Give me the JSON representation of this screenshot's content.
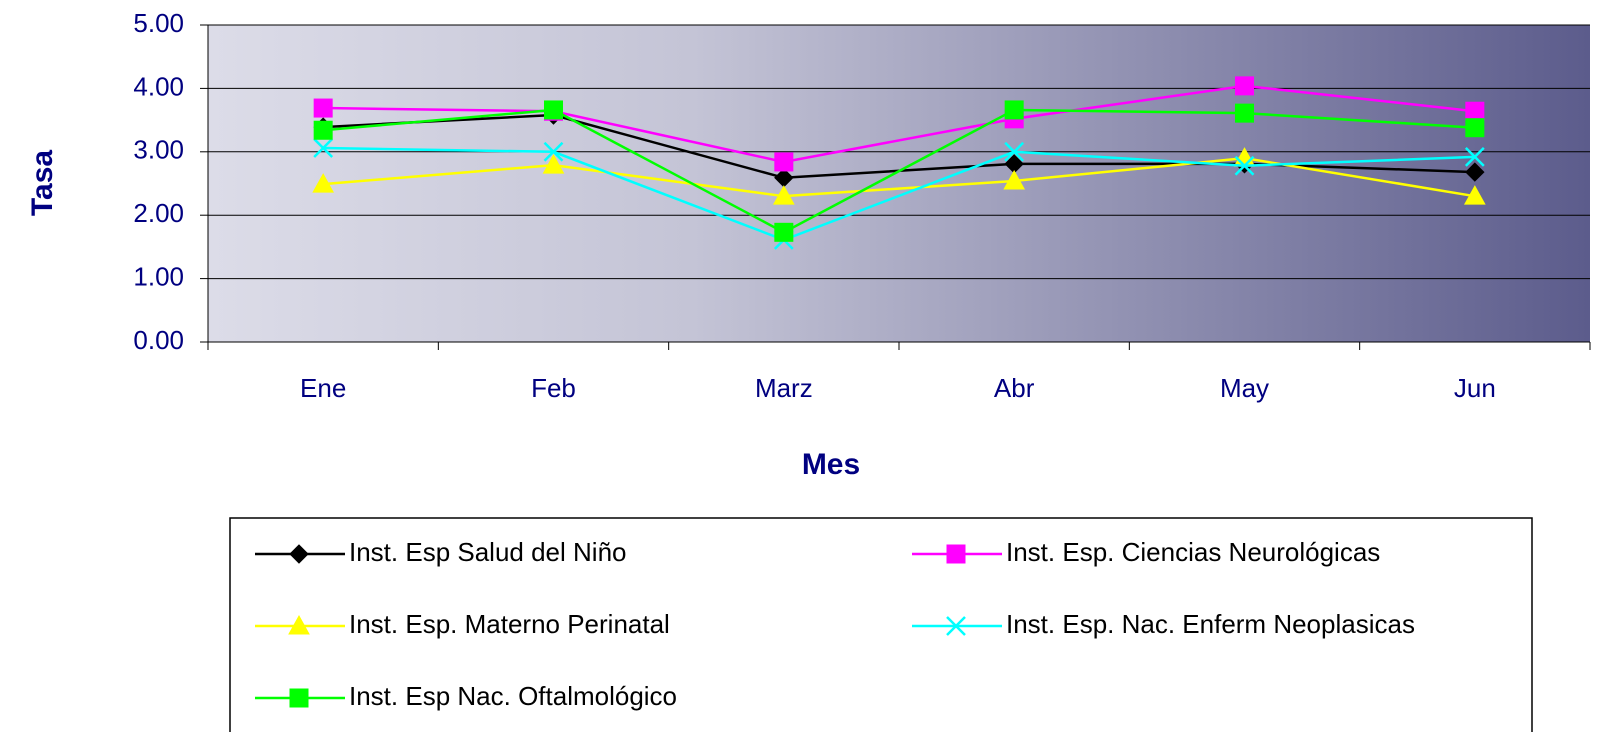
{
  "chart_data": {
    "type": "line",
    "y_label": "Tasa",
    "x_label": "Mes",
    "categories": [
      "Ene",
      "Feb",
      "Marz",
      "Abr",
      "May",
      "Jun"
    ],
    "series": [
      {
        "name": "Inst. Esp Salud del Niño",
        "color": "#000000",
        "marker": "diamond",
        "values": [
          3.39,
          3.58,
          2.59,
          2.81,
          2.81,
          2.68
        ]
      },
      {
        "name": "Inst. Esp. Ciencias Neurológicas",
        "color": "#ff00ff",
        "marker": "square",
        "values": [
          3.69,
          3.64,
          2.84,
          3.52,
          4.04,
          3.64
        ]
      },
      {
        "name": "Inst. Esp. Materno Perinatal",
        "color": "#ffff00",
        "marker": "triangle",
        "values": [
          2.49,
          2.79,
          2.3,
          2.54,
          2.9,
          2.3
        ]
      },
      {
        "name": "Inst. Esp. Nac. Enferm Neoplasicas",
        "color": "#00ffff",
        "marker": "x",
        "values": [
          3.06,
          3.0,
          1.61,
          3.0,
          2.78,
          2.92
        ]
      },
      {
        "name": "Inst. Esp Nac. Oftalmológico",
        "color": "#00ff00",
        "marker": "square",
        "values": [
          3.34,
          3.66,
          1.73,
          3.66,
          3.61,
          3.38
        ]
      }
    ],
    "ylim": [
      0,
      5
    ],
    "yticks": [
      {
        "value": 0,
        "label": "0.00"
      },
      {
        "value": 1,
        "label": "1.00"
      },
      {
        "value": 2,
        "label": "2.00"
      },
      {
        "value": 3,
        "label": "3.00"
      },
      {
        "value": 4,
        "label": "4.00"
      },
      {
        "value": 5,
        "label": "5.00"
      }
    ],
    "grid": true
  }
}
